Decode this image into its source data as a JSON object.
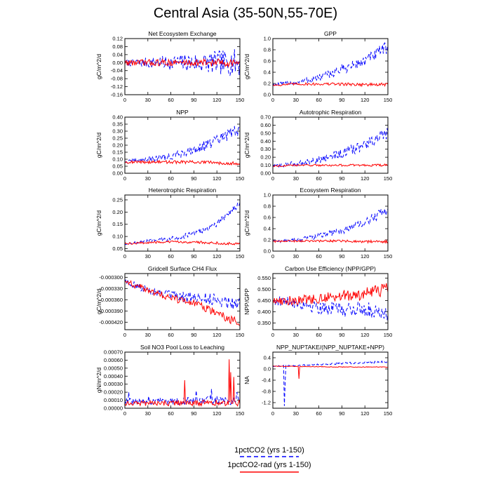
{
  "page_title": "Central Asia (35-50N,55-70E)",
  "colors": {
    "series_1": "#0000ff",
    "series_2": "#ff0000",
    "axis": "#000000"
  },
  "legend": {
    "entries": [
      {
        "label": "1pctCO2 (yrs 1-150)",
        "style": "dashed",
        "color": "#0000ff"
      },
      {
        "label": "1pctCO2-rad (yrs 1-150)",
        "style": "solid",
        "color": "#ff0000"
      }
    ]
  },
  "chart_data": [
    {
      "type": "line",
      "title": "Net Ecosystem Exchange",
      "ylabel": "gC/m^2/d",
      "xlim": [
        0,
        150
      ],
      "ylim": [
        -0.16,
        0.12
      ],
      "xticks": [
        "0",
        "30",
        "60",
        "90",
        "120",
        "150"
      ],
      "yticks": [
        "-0.16",
        "-0.12",
        "-0.08",
        "-0.04",
        "0.00",
        "0.04",
        "0.08",
        "0.12"
      ],
      "series": [
        {
          "x": [
            0,
            150
          ],
          "y": [
            0.0,
            0.0
          ],
          "noise": [
            0.015,
            0.07
          ]
        },
        {
          "x": [
            0,
            150
          ],
          "y": [
            0.0,
            0.0
          ],
          "noise": [
            0.015,
            0.02
          ]
        }
      ]
    },
    {
      "type": "line",
      "title": "GPP",
      "ylabel": "gC/m^2/d",
      "xlim": [
        0,
        150
      ],
      "ylim": [
        0.0,
        1.0
      ],
      "xticks": [
        "0",
        "30",
        "60",
        "90",
        "120",
        "150"
      ],
      "yticks": [
        "0.0",
        "0.2",
        "0.4",
        "0.6",
        "0.8",
        "1.0"
      ],
      "series": [
        {
          "x": [
            0,
            30,
            60,
            90,
            120,
            150
          ],
          "y": [
            0.17,
            0.22,
            0.3,
            0.45,
            0.6,
            0.85
          ],
          "noise": [
            0.03,
            0.12
          ]
        },
        {
          "x": [
            0,
            30,
            60,
            90,
            120,
            150
          ],
          "y": [
            0.17,
            0.19,
            0.19,
            0.19,
            0.18,
            0.18
          ],
          "noise": [
            0.02,
            0.03
          ]
        }
      ]
    },
    {
      "type": "line",
      "title": "NPP",
      "ylabel": "gC/m^2/d",
      "xlim": [
        0,
        150
      ],
      "ylim": [
        0.0,
        0.4
      ],
      "xticks": [
        "0",
        "30",
        "60",
        "90",
        "120",
        "150"
      ],
      "yticks": [
        "0.00",
        "0.05",
        "0.10",
        "0.15",
        "0.20",
        "0.25",
        "0.30",
        "0.35",
        "0.40"
      ],
      "series": [
        {
          "x": [
            0,
            30,
            60,
            90,
            120,
            150
          ],
          "y": [
            0.08,
            0.1,
            0.12,
            0.17,
            0.23,
            0.32
          ],
          "noise": [
            0.01,
            0.05
          ]
        },
        {
          "x": [
            0,
            30,
            60,
            90,
            120,
            150
          ],
          "y": [
            0.08,
            0.08,
            0.08,
            0.08,
            0.075,
            0.07
          ],
          "noise": [
            0.01,
            0.012
          ]
        }
      ]
    },
    {
      "type": "line",
      "title": "Autotrophic Respiration",
      "ylabel": "gC/m^2/d",
      "xlim": [
        0,
        150
      ],
      "ylim": [
        0.0,
        0.7
      ],
      "xticks": [
        "0",
        "30",
        "60",
        "90",
        "120",
        "150"
      ],
      "yticks": [
        "0.00",
        "0.10",
        "0.20",
        "0.30",
        "0.40",
        "0.50",
        "0.60",
        "0.70"
      ],
      "series": [
        {
          "x": [
            0,
            30,
            60,
            90,
            120,
            150
          ],
          "y": [
            0.09,
            0.12,
            0.17,
            0.25,
            0.35,
            0.5
          ],
          "noise": [
            0.02,
            0.08
          ]
        },
        {
          "x": [
            0,
            30,
            60,
            90,
            120,
            150
          ],
          "y": [
            0.09,
            0.1,
            0.1,
            0.1,
            0.1,
            0.1
          ],
          "noise": [
            0.01,
            0.015
          ]
        }
      ]
    },
    {
      "type": "line",
      "title": "Heterotrophic Respiration",
      "ylabel": "gC/m^2/d",
      "xlim": [
        0,
        150
      ],
      "ylim": [
        0.04,
        0.27
      ],
      "xticks": [
        "0",
        "30",
        "60",
        "90",
        "120",
        "150"
      ],
      "yticks": [
        "0.05",
        "0.10",
        "0.15",
        "0.20",
        "0.25"
      ],
      "series": [
        {
          "x": [
            0,
            30,
            60,
            90,
            120,
            150
          ],
          "y": [
            0.07,
            0.08,
            0.09,
            0.11,
            0.15,
            0.24
          ],
          "noise": [
            0.005,
            0.015
          ]
        },
        {
          "x": [
            0,
            30,
            60,
            90,
            120,
            150
          ],
          "y": [
            0.07,
            0.075,
            0.078,
            0.077,
            0.073,
            0.07
          ],
          "noise": [
            0.004,
            0.006
          ]
        }
      ]
    },
    {
      "type": "line",
      "title": "Ecosystem Respiration",
      "ylabel": "gC/m^2/d",
      "xlim": [
        0,
        150
      ],
      "ylim": [
        0.0,
        1.0
      ],
      "xticks": [
        "0",
        "30",
        "60",
        "90",
        "120",
        "150"
      ],
      "yticks": [
        "0.0",
        "0.2",
        "0.4",
        "0.6",
        "0.8",
        "1.0"
      ],
      "series": [
        {
          "x": [
            0,
            30,
            60,
            90,
            120,
            150
          ],
          "y": [
            0.17,
            0.2,
            0.27,
            0.37,
            0.5,
            0.75
          ],
          "noise": [
            0.02,
            0.09
          ]
        },
        {
          "x": [
            0,
            30,
            60,
            90,
            120,
            150
          ],
          "y": [
            0.17,
            0.18,
            0.18,
            0.18,
            0.17,
            0.17
          ],
          "noise": [
            0.015,
            0.025
          ]
        }
      ]
    },
    {
      "type": "line",
      "title": "Gridcell Surface CH4 Flux",
      "ylabel": "gC/m^2/d",
      "xlim": [
        0,
        150
      ],
      "ylim": [
        -0.00044,
        -0.00029
      ],
      "xticks": [
        "0",
        "30",
        "60",
        "90",
        "120",
        "150"
      ],
      "yticks": [
        "-0.000420",
        "-0.000390",
        "-0.000360",
        "-0.000330",
        "-0.000300"
      ],
      "series": [
        {
          "x": [
            0,
            30,
            60,
            90,
            120,
            150
          ],
          "y": [
            -0.00031,
            -0.000335,
            -0.00035,
            -0.000355,
            -0.00036,
            -0.00037
          ],
          "noise": [
            8e-06,
            2e-05
          ]
        },
        {
          "x": [
            0,
            30,
            60,
            90,
            120,
            150
          ],
          "y": [
            -0.00031,
            -0.000335,
            -0.000355,
            -0.00037,
            -0.000395,
            -0.000425
          ],
          "noise": [
            8e-06,
            1.2e-05
          ]
        }
      ]
    },
    {
      "type": "line",
      "title": "Carbon Use Efficiency (NPP/GPP)",
      "ylabel": "NPP/GPP",
      "xlim": [
        0,
        150
      ],
      "ylim": [
        0.32,
        0.57
      ],
      "xticks": [
        "0",
        "30",
        "60",
        "90",
        "120",
        "150"
      ],
      "yticks": [
        "0.350",
        "0.400",
        "0.450",
        "0.500",
        "0.550"
      ],
      "series": [
        {
          "x": [
            0,
            30,
            60,
            90,
            120,
            150
          ],
          "y": [
            0.45,
            0.44,
            0.42,
            0.41,
            0.41,
            0.4
          ],
          "noise": [
            0.02,
            0.04
          ]
        },
        {
          "x": [
            0,
            30,
            60,
            90,
            120,
            150
          ],
          "y": [
            0.45,
            0.45,
            0.46,
            0.47,
            0.48,
            0.5
          ],
          "noise": [
            0.02,
            0.03
          ]
        }
      ]
    },
    {
      "type": "line",
      "title": "Soil NO3 Pool Loss to Leaching",
      "ylabel": "gN/m^2/d",
      "xlim": [
        0,
        150
      ],
      "ylim": [
        0.0,
        0.0007
      ],
      "xticks": [
        "0",
        "30",
        "60",
        "90",
        "120",
        "150"
      ],
      "yticks": [
        "0.00000",
        "0.00010",
        "0.00020",
        "0.00030",
        "0.00040",
        "0.00050",
        "0.00060",
        "0.00070"
      ],
      "series": [
        {
          "x": [
            0,
            150
          ],
          "y": [
            8e-05,
            0.0001
          ],
          "noise": [
            4e-05,
            6e-05
          ],
          "spikes": [
            [
              5,
              0.0002
            ],
            [
              31,
              0.00015
            ],
            [
              93,
              0.00022
            ],
            [
              113,
              0.00024
            ],
            [
              146,
              0.0002
            ]
          ]
        },
        {
          "x": [
            0,
            150
          ],
          "y": [
            6e-05,
            7e-05
          ],
          "noise": [
            3e-05,
            4e-05
          ],
          "spikes": [
            [
              78,
              0.00035
            ],
            [
              136,
              0.00061
            ],
            [
              138,
              0.00045
            ],
            [
              142,
              0.00039
            ]
          ]
        }
      ]
    },
    {
      "type": "line",
      "title": "NPP_NUPTAKE/(NPP_NUPTAKE+NPP)",
      "ylabel": "NA",
      "xlim": [
        0,
        150
      ],
      "ylim": [
        -1.4,
        0.6
      ],
      "xticks": [
        "0",
        "30",
        "60",
        "90",
        "120",
        "150"
      ],
      "yticks": [
        "-1.2",
        "-0.8",
        "-0.4",
        "0.0",
        "0.4"
      ],
      "series": [
        {
          "x": [
            0,
            30,
            60,
            90,
            120,
            150
          ],
          "y": [
            0.1,
            0.12,
            0.16,
            0.2,
            0.23,
            0.25
          ],
          "noise": [
            0.02,
            0.04
          ],
          "spikes": [
            [
              15,
              -1.32
            ],
            [
              16,
              -0.5
            ]
          ]
        },
        {
          "x": [
            0,
            30,
            60,
            90,
            120,
            150
          ],
          "y": [
            0.1,
            0.09,
            0.08,
            0.07,
            0.07,
            0.07
          ],
          "noise": [
            0.01,
            0.015
          ],
          "spikes": [
            [
              34,
              -0.35
            ]
          ]
        }
      ]
    }
  ]
}
